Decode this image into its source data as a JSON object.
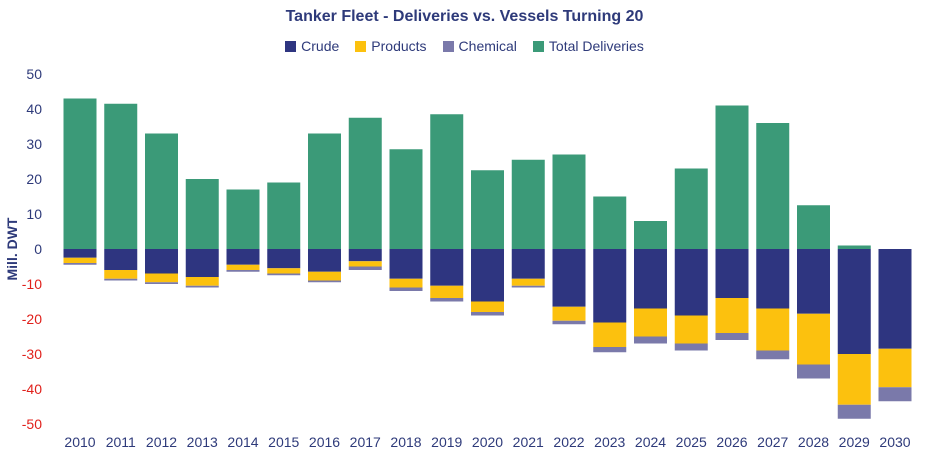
{
  "chart_data": {
    "type": "bar",
    "title": "Tanker Fleet - Deliveries vs. Vessels Turning 20",
    "ylabel": "Mill. DWT",
    "xlabel": "",
    "ylim": [
      -50,
      50
    ],
    "yticks": [
      "50",
      "40",
      "30",
      "20",
      "10",
      "0",
      "-10",
      "-20",
      "-30",
      "-40",
      "-50"
    ],
    "ytick_values": [
      50,
      40,
      30,
      20,
      10,
      0,
      -10,
      -20,
      -30,
      -40,
      -50
    ],
    "stacked": true,
    "grid": false,
    "legend_position": "top-center",
    "categories": [
      "2010",
      "2011",
      "2012",
      "2013",
      "2014",
      "2015",
      "2016",
      "2017",
      "2018",
      "2019",
      "2020",
      "2021",
      "2022",
      "2023",
      "2024",
      "2025",
      "2026",
      "2027",
      "2028",
      "2029",
      "2030"
    ],
    "series": [
      {
        "name": "Crude",
        "color": "#2e3580",
        "values": [
          -2.5,
          -6,
          -7,
          -8,
          -4.5,
          -5.5,
          -6.5,
          -3.5,
          -8.5,
          -10.5,
          -15,
          -8.5,
          -16.5,
          -21,
          -17,
          -19,
          -14,
          -17,
          -18.5,
          -30,
          -28.5
        ]
      },
      {
        "name": "Products",
        "color": "#fcc10e",
        "values": [
          -1.5,
          -2.5,
          -2.5,
          -2.5,
          -1.5,
          -1.5,
          -2.5,
          -1.5,
          -2.5,
          -3.5,
          -3,
          -2,
          -4,
          -7,
          -8,
          -8,
          -10,
          -12,
          -14.5,
          -14.5,
          -11
        ]
      },
      {
        "name": "Chemical",
        "color": "#7a79aa",
        "values": [
          -0.5,
          -0.5,
          -0.5,
          -0.5,
          -0.5,
          -0.5,
          -0.5,
          -1,
          -1,
          -1,
          -1,
          -0.5,
          -1,
          -1.5,
          -2,
          -2,
          -2,
          -2.5,
          -4,
          -4,
          -4
        ]
      },
      {
        "name": "Total Deliveries",
        "color": "#3b9a78",
        "values": [
          43,
          41.5,
          33,
          20,
          17,
          19,
          33,
          37.5,
          28.5,
          38.5,
          22.5,
          25.5,
          27,
          15,
          8,
          23,
          41,
          36,
          12.5,
          1,
          0
        ]
      }
    ]
  }
}
